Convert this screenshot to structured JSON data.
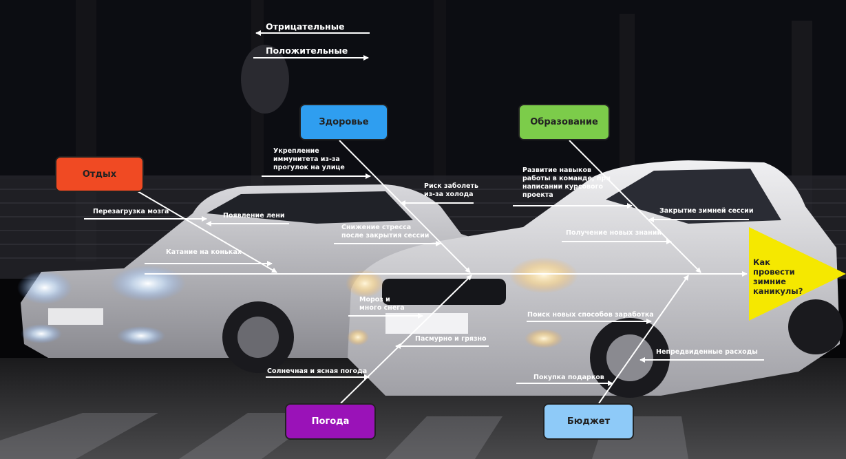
{
  "legend": {
    "negative": "Отрицательные",
    "positive": "Положительные"
  },
  "effect": "Как провести\nзимние\nканикулы?",
  "categories": {
    "rest": {
      "label": "Отдых",
      "color": "#f04a23",
      "text_color": "#222222"
    },
    "health": {
      "label": "Здоровье",
      "color": "#2f9ef0",
      "text_color": "#222222"
    },
    "education": {
      "label": "Образование",
      "color": "#7ccc4a",
      "text_color": "#222222"
    },
    "weather": {
      "label": "Погода",
      "color": "#9a12b8",
      "text_color": "#ffffff"
    },
    "budget": {
      "label": "Бюджет",
      "color": "#8ecaf8",
      "text_color": "#222222"
    }
  },
  "causes": {
    "rest": [
      "Перезагрузка мозга",
      "Появление лени",
      "Катание на коньках"
    ],
    "health": [
      "Укрепление\nиммунитета из-за\nпрогулок на улице",
      "Риск заболеть\nиз-за холода",
      "Снижение стресса\nпосле закрытия сессии"
    ],
    "education": [
      "Развитие навыков\nработы в команде, при\nнаписании курсового\nпроекта",
      "Закрытие зимней сессии",
      "Получение новых знаний"
    ],
    "weather": [
      "Мороз и\nмного снега",
      "Пасмурно и грязно",
      "Солнечная и ясная погода"
    ],
    "budget": [
      "Поиск новых способов заработка",
      "Непредвиденные расходы",
      "Покупка подарков"
    ]
  },
  "colors": {
    "spine": "#ffffff",
    "effect_triangle": "#f5e800"
  }
}
